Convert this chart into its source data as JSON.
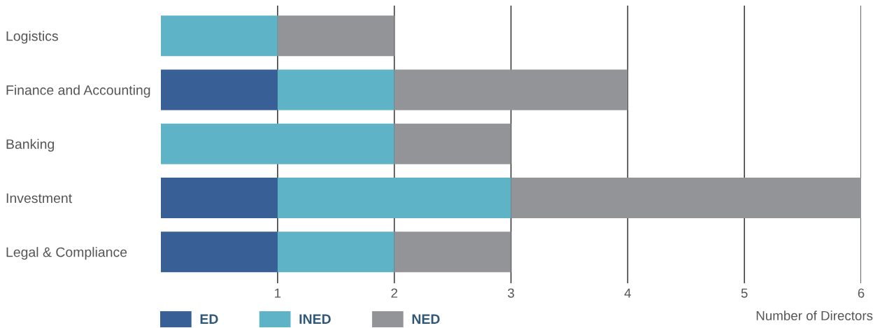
{
  "chart_data": {
    "type": "bar",
    "orientation": "horizontal",
    "stacked": true,
    "categories": [
      "Logistics",
      "Finance and Accounting",
      "Banking",
      "Investment",
      "Legal & Compliance"
    ],
    "series": [
      {
        "name": "ED",
        "color": "#385f96",
        "values": [
          0,
          1,
          0,
          1,
          1
        ]
      },
      {
        "name": "INED",
        "color": "#5fb3c6",
        "values": [
          1,
          1,
          2,
          2,
          1
        ]
      },
      {
        "name": "NED",
        "color": "#939497",
        "values": [
          1,
          2,
          1,
          3,
          1
        ]
      }
    ],
    "xlabel": "Number of Directors",
    "xlim": [
      0,
      6
    ],
    "xticks": [
      1,
      2,
      3,
      4,
      5,
      6
    ],
    "grid": "x",
    "legend": "bottom left"
  }
}
